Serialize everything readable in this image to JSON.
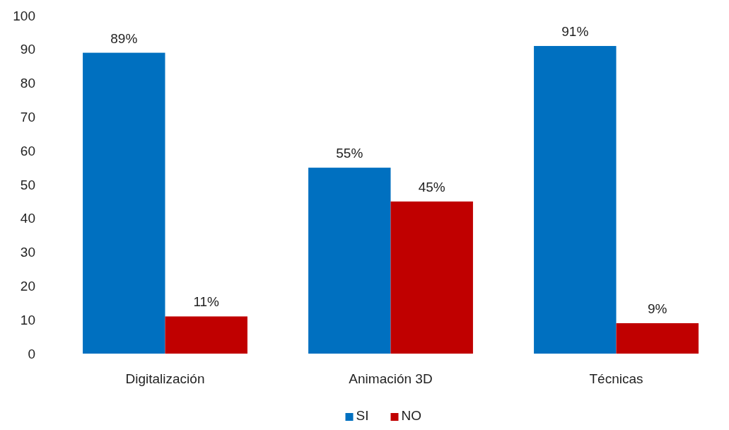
{
  "chart_data": {
    "type": "bar",
    "categories": [
      "Digitalización",
      "Animación 3D",
      "Técnicas"
    ],
    "series": [
      {
        "name": "SI",
        "color": "#0070c0",
        "values": [
          89,
          55,
          91
        ],
        "value_labels": [
          "89%",
          "55%",
          "91%"
        ]
      },
      {
        "name": "NO",
        "color": "#c00000",
        "values": [
          11,
          45,
          9
        ],
        "value_labels": [
          "11%",
          "45%",
          "9%"
        ]
      }
    ],
    "ylim": [
      0,
      100
    ],
    "yticks": [
      0,
      10,
      20,
      30,
      40,
      50,
      60,
      70,
      80,
      90,
      100
    ],
    "grid": false,
    "legend": "bottom"
  }
}
